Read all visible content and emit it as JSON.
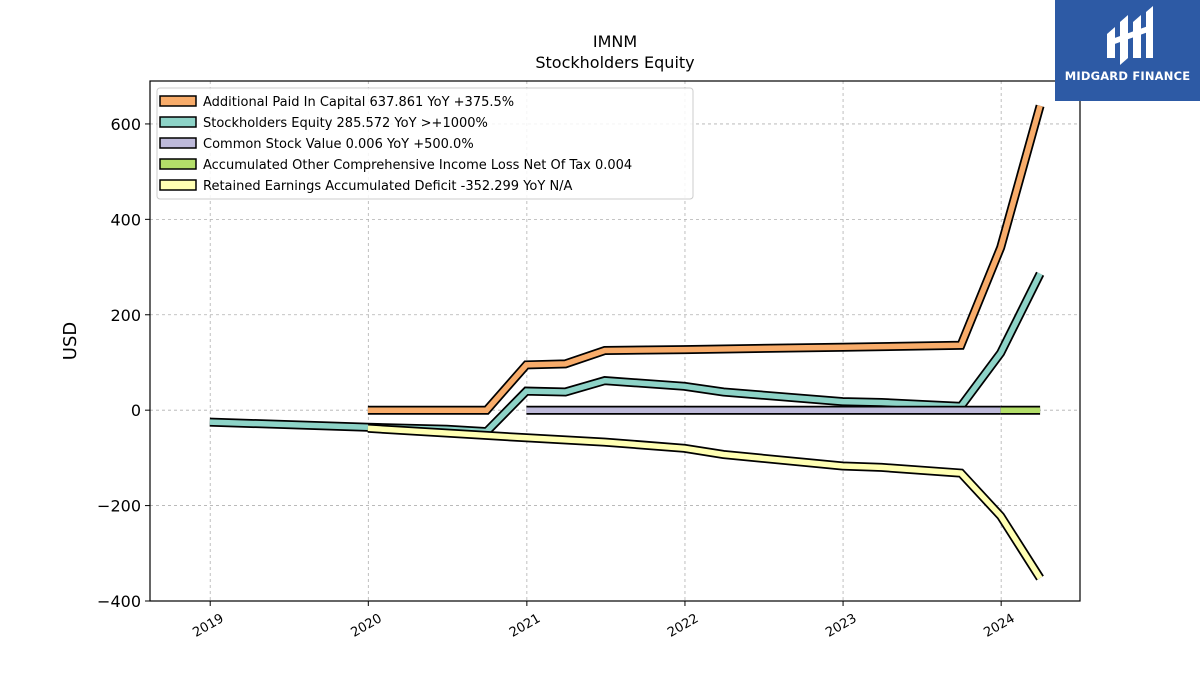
{
  "header": {
    "ticker": "IMNM",
    "subtitle": "Stockholders  Equity"
  },
  "logo": {
    "text": "MIDGARD FINANCE",
    "bg_color": "#2d5aa5"
  },
  "chart_data": {
    "type": "line",
    "ylabel": "USD",
    "xlabel": "",
    "x_ticks": [
      "2019",
      "2020",
      "2021",
      "2022",
      "2023",
      "2024"
    ],
    "y_ticks": [
      "600",
      "400",
      "200",
      "0",
      "−200",
      "−400"
    ],
    "ylim": [
      -400,
      690
    ],
    "xlim": [
      "2018-08-15",
      "2024-07-01"
    ],
    "grid": true,
    "legend_position": "top-left",
    "series": [
      {
        "name": "Additional Paid In Capital  637.861 YoY +375.5%",
        "color": "#f8ac6a",
        "points": [
          [
            "2019-12-31",
            0
          ],
          [
            "2020-09-30",
            0
          ],
          [
            "2020-12-31",
            95
          ],
          [
            "2021-03-31",
            97
          ],
          [
            "2021-06-30",
            125
          ],
          [
            "2021-12-31",
            127
          ],
          [
            "2022-12-31",
            132
          ],
          [
            "2023-09-30",
            136
          ],
          [
            "2023-12-31",
            341
          ],
          [
            "2024-03-31",
            638
          ]
        ]
      },
      {
        "name": "Stockholders Equity  285.572 YoY >+1000%",
        "color": "#8dd3c7",
        "points": [
          [
            "2018-12-31",
            -25
          ],
          [
            "2019-12-31",
            -36
          ],
          [
            "2020-06-30",
            -40
          ],
          [
            "2020-09-30",
            -45
          ],
          [
            "2020-12-31",
            40
          ],
          [
            "2021-03-31",
            38
          ],
          [
            "2021-06-30",
            62
          ],
          [
            "2021-12-31",
            50
          ],
          [
            "2022-03-31",
            38
          ],
          [
            "2022-12-31",
            18
          ],
          [
            "2023-03-31",
            16
          ],
          [
            "2023-09-30",
            8
          ],
          [
            "2023-12-31",
            120
          ],
          [
            "2024-03-31",
            286
          ]
        ]
      },
      {
        "name": "Common Stock Value  0.006 YoY +500.0%",
        "color": "#bebada",
        "points": [
          [
            "2020-12-31",
            0
          ],
          [
            "2023-12-31",
            0
          ]
        ]
      },
      {
        "name": "Accumulated Other Comprehensive Income Loss Net Of Tax  0.004",
        "color": "#b3de69",
        "points": [
          [
            "2023-12-31",
            0
          ],
          [
            "2024-03-31",
            0
          ]
        ]
      },
      {
        "name": "Retained Earnings Accumulated Deficit  -352.299 YoY N/A",
        "color": "#ffffb3",
        "points": [
          [
            "2019-12-31",
            -38
          ],
          [
            "2020-12-31",
            -58
          ],
          [
            "2021-06-30",
            -67
          ],
          [
            "2021-12-31",
            -80
          ],
          [
            "2022-03-31",
            -93
          ],
          [
            "2022-12-31",
            -117
          ],
          [
            "2023-03-31",
            -120
          ],
          [
            "2023-09-30",
            -132
          ],
          [
            "2023-12-31",
            -222
          ],
          [
            "2024-03-31",
            -352
          ]
        ]
      }
    ]
  }
}
